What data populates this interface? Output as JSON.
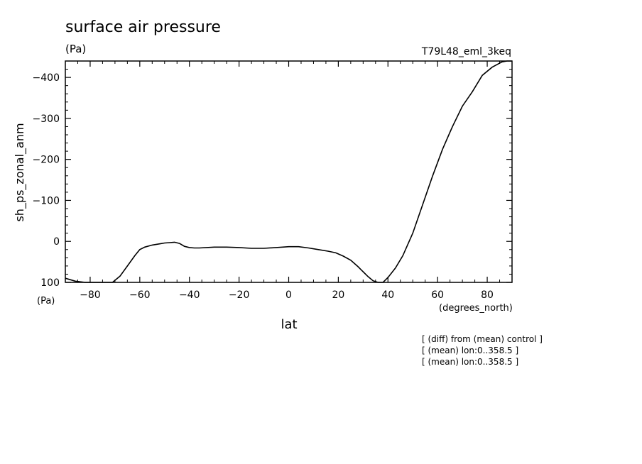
{
  "chart_data": {
    "type": "line",
    "title": "surface air pressure",
    "units": "(Pa)",
    "experiment": "T79L48_eml_3keq",
    "ylabel": "sh_ps_zonal_anm",
    "yunit": "(Pa)",
    "xlabel": "lat",
    "xunit": "(degrees_north)",
    "xlim": [
      -90,
      90
    ],
    "ylim": [
      100,
      -440
    ],
    "y_axis_inverted": true,
    "grid": false,
    "xticks": [
      -80,
      -60,
      -40,
      -20,
      0,
      20,
      40,
      60,
      80
    ],
    "yticks": [
      100,
      0,
      -100,
      -200,
      -300,
      -400
    ],
    "xtick_labels": [
      "−80",
      "−60",
      "−40",
      "−20",
      "0",
      "20",
      "40",
      "60",
      "80"
    ],
    "ytick_labels": [
      "100",
      "0",
      "−100",
      "−200",
      "−300",
      "−400"
    ],
    "series": [
      {
        "x": [
          -90,
          -86,
          -82,
          -78,
          -74,
          -71,
          -68,
          -65,
          -62,
          -60,
          -58,
          -55,
          -52,
          -50,
          -48,
          -46,
          -44,
          -42,
          -40,
          -38,
          -36,
          -33,
          -30,
          -25,
          -20,
          -15,
          -10,
          -5,
          0,
          4,
          8,
          12,
          16,
          19,
          22,
          25,
          28,
          30,
          32,
          34,
          36,
          38,
          40,
          43,
          46,
          50,
          54,
          58,
          62,
          66,
          70,
          74,
          78,
          82,
          86,
          88,
          90
        ],
        "y": [
          90,
          97,
          102,
          104,
          105,
          100,
          85,
          60,
          35,
          20,
          14,
          9,
          6,
          4,
          3,
          2,
          5,
          12,
          15,
          16,
          16,
          15,
          14,
          14,
          15,
          17,
          17,
          15,
          13,
          13,
          16,
          20,
          24,
          28,
          36,
          46,
          62,
          74,
          86,
          96,
          102,
          100,
          88,
          65,
          35,
          -20,
          -90,
          -160,
          -225,
          -280,
          -330,
          -365,
          -405,
          -425,
          -438,
          -440,
          -440
        ]
      }
    ],
    "annotations": [
      "[ (diff) from (mean) control ]",
      "[ (mean) lon:0..358.5 ]",
      "[ (mean) lon:0..358.5 ]"
    ]
  }
}
